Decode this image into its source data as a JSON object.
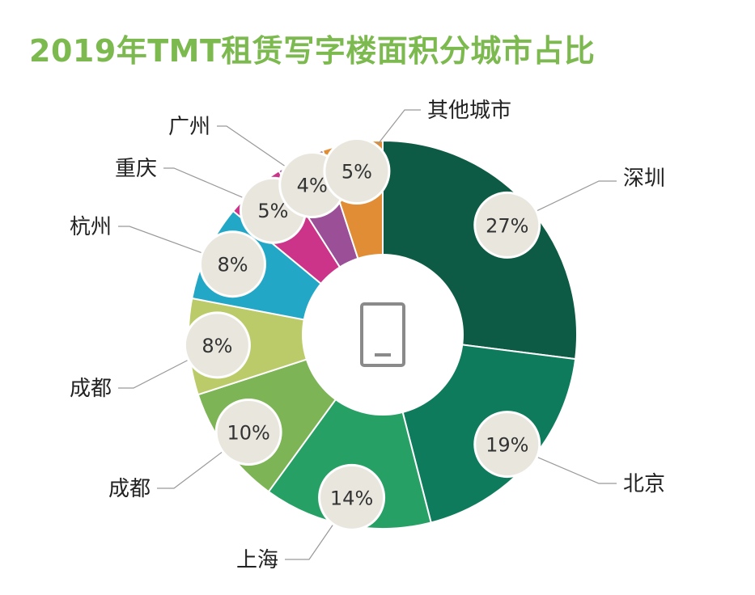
{
  "title": "2019年TMT租赁写字楼面积分城市占比",
  "chart_data": {
    "type": "pie",
    "style": "donut",
    "title": "2019年TMT租赁写字楼面积分城市占比",
    "center_icon": "tablet-icon",
    "slices": [
      {
        "label": "深圳",
        "value": 27,
        "display": "27%",
        "color": "#0d5b44"
      },
      {
        "label": "北京",
        "value": 19,
        "display": "19%",
        "color": "#0e7b5c"
      },
      {
        "label": "上海",
        "value": 14,
        "display": "14%",
        "color": "#27a065"
      },
      {
        "label": "成都",
        "value": 10,
        "display": "10%",
        "color": "#7db455"
      },
      {
        "label": "成都",
        "value": 8,
        "display": "8%",
        "color": "#bccb69"
      },
      {
        "label": "杭州",
        "value": 8,
        "display": "8%",
        "color": "#23a7c6"
      },
      {
        "label": "重庆",
        "value": 5,
        "display": "5%",
        "color": "#cc3489"
      },
      {
        "label": "广州",
        "value": 4,
        "display": "4%",
        "color": "#9a4f96"
      },
      {
        "label": "其他城市",
        "value": 5,
        "display": "5%",
        "color": "#e18d35"
      }
    ]
  }
}
